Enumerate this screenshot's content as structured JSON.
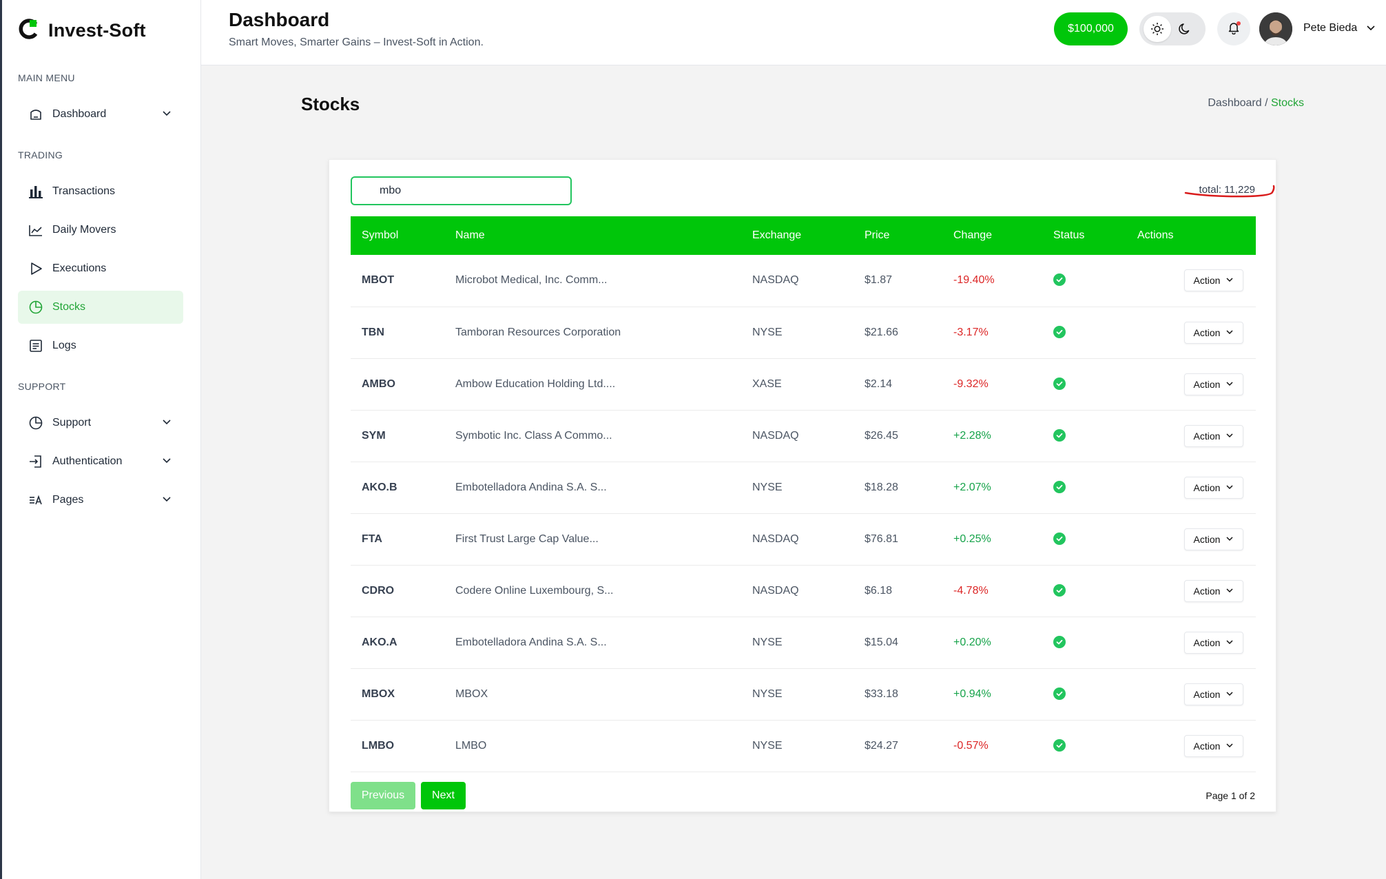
{
  "app": {
    "name": "Invest-Soft"
  },
  "sidebar": {
    "sections": {
      "main": "MAIN MENU",
      "trading": "TRADING",
      "support": "SUPPORT"
    },
    "items": [
      {
        "label": "Dashboard",
        "icon": "dashboard-icon",
        "has_submenu": true
      },
      {
        "label": "Transactions",
        "icon": "bar-chart-icon"
      },
      {
        "label": "Daily Movers",
        "icon": "trend-icon"
      },
      {
        "label": "Executions",
        "icon": "play-icon"
      },
      {
        "label": "Stocks",
        "icon": "pie-chart-icon",
        "active": true
      },
      {
        "label": "Logs",
        "icon": "list-icon"
      },
      {
        "label": "Support",
        "icon": "pie-chart-icon",
        "has_submenu": true
      },
      {
        "label": "Authentication",
        "icon": "login-icon",
        "has_submenu": true
      },
      {
        "label": "Pages",
        "icon": "translate-icon",
        "has_submenu": true
      }
    ]
  },
  "header": {
    "title": "Dashboard",
    "subtitle": "Smart Moves, Smarter Gains – Invest-Soft in Action.",
    "balance": "$100,000",
    "user_name": "Pete Bieda"
  },
  "page": {
    "title": "Stocks",
    "breadcrumb": {
      "parent": "Dashboard /",
      "current": "Stocks"
    }
  },
  "search": {
    "value": "mbo"
  },
  "total": "total: 11,229",
  "table": {
    "columns": [
      "Symbol",
      "Name",
      "Exchange",
      "Price",
      "Change",
      "Status",
      "Actions"
    ],
    "action_label": "Action",
    "rows": [
      {
        "symbol": "MBOT",
        "name": "Microbot Medical, Inc. Comm...",
        "exchange": "NASDAQ",
        "price": "$1.87",
        "change": "-19.40%"
      },
      {
        "symbol": "TBN",
        "name": "Tamboran Resources Corporation",
        "exchange": "NYSE",
        "price": "$21.66",
        "change": "-3.17%"
      },
      {
        "symbol": "AMBO",
        "name": "Ambow Education Holding Ltd....",
        "exchange": "XASE",
        "price": "$2.14",
        "change": "-9.32%"
      },
      {
        "symbol": "SYM",
        "name": "Symbotic Inc. Class A Commo...",
        "exchange": "NASDAQ",
        "price": "$26.45",
        "change": "+2.28%"
      },
      {
        "symbol": "AKO.B",
        "name": "Embotelladora Andina S.A. S...",
        "exchange": "NYSE",
        "price": "$18.28",
        "change": "+2.07%"
      },
      {
        "symbol": "FTA",
        "name": "First Trust Large Cap Value...",
        "exchange": "NASDAQ",
        "price": "$76.81",
        "change": "+0.25%"
      },
      {
        "symbol": "CDRO",
        "name": "Codere Online Luxembourg, S...",
        "exchange": "NASDAQ",
        "price": "$6.18",
        "change": "-4.78%"
      },
      {
        "symbol": "AKO.A",
        "name": "Embotelladora Andina S.A. S...",
        "exchange": "NYSE",
        "price": "$15.04",
        "change": "+0.20%"
      },
      {
        "symbol": "MBOX",
        "name": "MBOX",
        "exchange": "NYSE",
        "price": "$33.18",
        "change": "+0.94%"
      },
      {
        "symbol": "LMBO",
        "name": "LMBO",
        "exchange": "NYSE",
        "price": "$24.27",
        "change": "-0.57%"
      }
    ]
  },
  "pagination": {
    "previous": "Previous",
    "next": "Next",
    "info": "Page 1 of 2"
  },
  "colors": {
    "brand": "#00c60a",
    "negative": "#dc2626",
    "positive": "#16a34a",
    "annotation": "#d91c1c"
  }
}
